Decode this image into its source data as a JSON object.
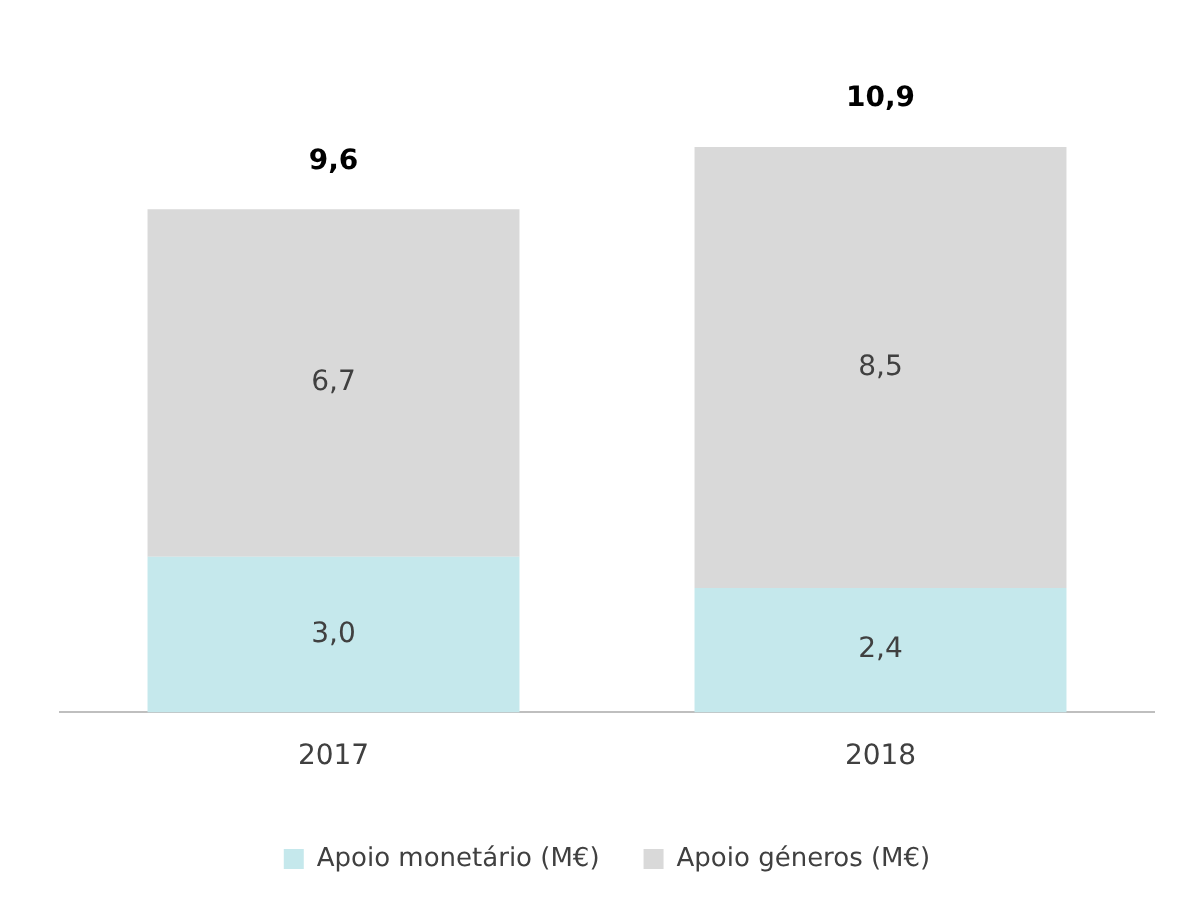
{
  "chart_data": {
    "type": "bar",
    "stacked": true,
    "categories": [
      "2017",
      "2018"
    ],
    "series": [
      {
        "name": "Apoio monetário (M€)",
        "color": "#c5e8ec",
        "values": [
          3.0,
          2.4
        ],
        "value_labels": [
          "3,0",
          "2,4"
        ]
      },
      {
        "name": "Apoio géneros (M€)",
        "color": "#d9d9d9",
        "values": [
          6.7,
          8.5
        ],
        "value_labels": [
          "6,7",
          "8,5"
        ]
      }
    ],
    "totals": [
      "9,6",
      "10,9"
    ],
    "legend": "bottom",
    "grid": false,
    "tick_labels": "x"
  }
}
